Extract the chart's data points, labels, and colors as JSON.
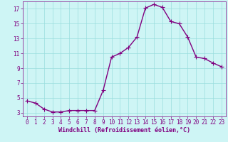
{
  "x": [
    0,
    1,
    2,
    3,
    4,
    5,
    6,
    7,
    8,
    9,
    10,
    11,
    12,
    13,
    14,
    15,
    16,
    17,
    18,
    19,
    20,
    21,
    22,
    23
  ],
  "y": [
    4.6,
    4.3,
    3.5,
    3.1,
    3.1,
    3.3,
    3.3,
    3.3,
    3.3,
    6.0,
    10.5,
    11.0,
    11.8,
    13.2,
    17.1,
    17.6,
    17.2,
    15.3,
    15.0,
    13.2,
    10.5,
    10.3,
    9.7,
    9.2
  ],
  "line_color": "#800080",
  "marker": "+",
  "marker_size": 4,
  "bg_color": "#cef5f5",
  "grid_color": "#99dddd",
  "xlabel": "Windchill (Refroidissement éolien,°C)",
  "xlabel_color": "#800080",
  "tick_color": "#800080",
  "ylim": [
    2.5,
    18.0
  ],
  "yticks": [
    3,
    5,
    7,
    9,
    11,
    13,
    15,
    17
  ],
  "xlim": [
    -0.5,
    23.5
  ],
  "xticks": [
    0,
    1,
    2,
    3,
    4,
    5,
    6,
    7,
    8,
    9,
    10,
    11,
    12,
    13,
    14,
    15,
    16,
    17,
    18,
    19,
    20,
    21,
    22,
    23
  ],
  "line_width": 1.0
}
